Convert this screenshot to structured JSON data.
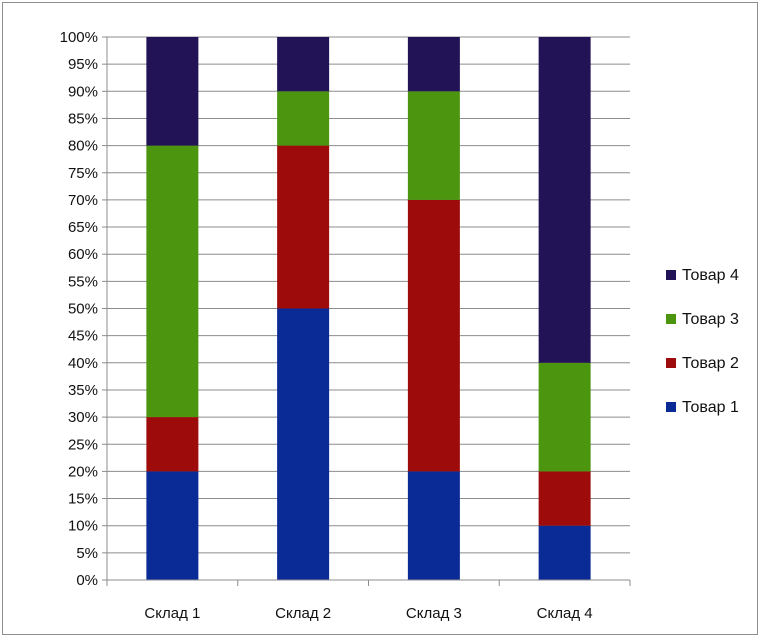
{
  "chart_data": {
    "type": "bar",
    "stacked": "percent",
    "categories": [
      "Склад 1",
      "Склад 2",
      "Склад 3",
      "Склад 4"
    ],
    "series": [
      {
        "name": "Товар 1",
        "values": [
          20,
          50,
          20,
          10
        ],
        "color": "#0a2a96"
      },
      {
        "name": "Товар 2",
        "values": [
          10,
          30,
          50,
          10
        ],
        "color": "#9e0b0b"
      },
      {
        "name": "Товар 3",
        "values": [
          50,
          10,
          20,
          20
        ],
        "color": "#4b950f"
      },
      {
        "name": "Товар 4",
        "values": [
          20,
          10,
          10,
          60
        ],
        "color": "#221256"
      }
    ],
    "ylim": [
      0,
      100
    ],
    "y_ticks": [
      "0%",
      "5%",
      "10%",
      "15%",
      "20%",
      "25%",
      "30%",
      "35%",
      "40%",
      "45%",
      "50%",
      "55%",
      "60%",
      "65%",
      "70%",
      "75%",
      "80%",
      "85%",
      "90%",
      "95%",
      "100%"
    ],
    "grid": true,
    "legend_position": "right",
    "legend_order": [
      "Товар 4",
      "Товар 3",
      "Товар 2",
      "Товар 1"
    ],
    "title": "",
    "xlabel": "",
    "ylabel": ""
  }
}
